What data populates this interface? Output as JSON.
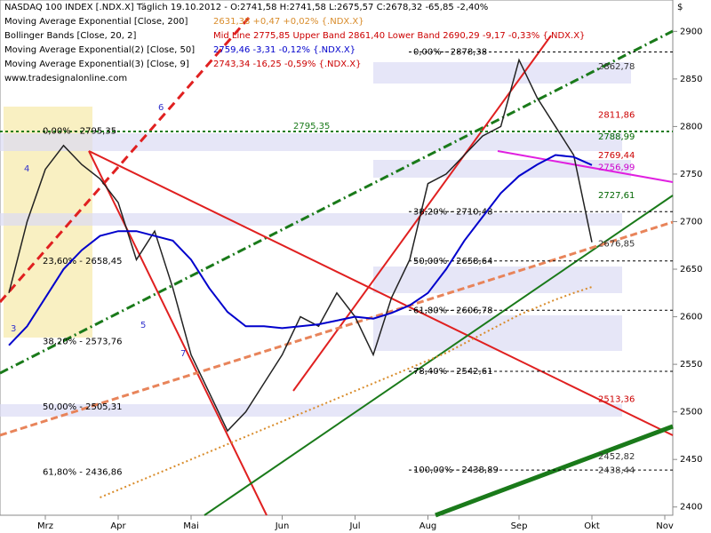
{
  "chart_data": {
    "type": "line",
    "title": "NASDAQ 100 INDEX [.NDX.X]  Täglich 19.10.2012 - O:2741,58 H:2741,58 L:2675,57 C:2678,32 -65,85 -2,40%",
    "y_unit": "$",
    "watermark": "www.tradesignalonline.com",
    "legend": [
      {
        "name": "Moving Average Exponential [Close, 200]",
        "value": "2631,38 +0,47 +0,02% {.NDX.X}",
        "color": "#d98c2b"
      },
      {
        "name": "Bollinger Bands [Close, 20, 2]",
        "value": "Mid Line 2775,85 Upper Band 2861,40 Lower Band 2690,29 -9,17 -0,33% {.NDX.X}",
        "color": "#cc0000"
      },
      {
        "name": "Moving Average Exponential(2) [Close, 50]",
        "value": "2759,46 -3,31 -0,12% {.NDX.X}",
        "color": "#0000cc"
      },
      {
        "name": "Moving Average Exponential(3) [Close, 9]",
        "value": "2743,34 -16,25 -0,59% {.NDX.X}",
        "color": "#cc0000"
      }
    ],
    "categories": [
      null,
      null,
      "Mrz",
      null,
      null,
      null,
      "Apr",
      null,
      null,
      null,
      "Mai",
      null,
      null,
      null,
      null,
      "Jun",
      null,
      null,
      null,
      "Jul",
      null,
      null,
      null,
      "Aug",
      null,
      null,
      null,
      null,
      "Sep",
      null,
      null,
      null,
      "Okt",
      null,
      null,
      null,
      "Nov"
    ],
    "series": [
      {
        "color": "#222222",
        "values": [
          2625,
          2700,
          2755,
          2780,
          2760,
          2745,
          2720,
          2660,
          2690,
          2630,
          2560,
          2520,
          2480,
          2500,
          2530,
          2560,
          2600,
          2590,
          2625,
          2600,
          2560,
          2620,
          2660,
          2740,
          2750,
          2770,
          2790,
          2800,
          2870,
          2830,
          2800,
          2770,
          2678.32,
          null,
          null,
          null,
          null
        ]
      },
      {
        "name": "Moving Average Exponential(2) [Close, 50]",
        "color": "#0000cc",
        "values": [
          2570,
          2590,
          2620,
          2650,
          2670,
          2685,
          2690,
          2690,
          2685,
          2680,
          2660,
          2630,
          2605,
          2590,
          2590,
          2588,
          2590,
          2592,
          2596,
          2600,
          2598,
          2604,
          2612,
          2625,
          2650,
          2680,
          2705,
          2730,
          2748,
          2760,
          2770,
          2768,
          2759.46,
          null,
          null,
          null,
          null
        ]
      },
      {
        "name": "Moving Average Exponential [Close, 200]",
        "color": "#d98c2b",
        "values": [
          null,
          null,
          null,
          null,
          null,
          2410,
          2418,
          2426,
          2434,
          2442,
          2450,
          2458,
          2466,
          2474,
          2482,
          2490,
          2498,
          2506,
          2514,
          2522,
          2530,
          2538,
          2546,
          2554,
          2562,
          2572,
          2582,
          2592,
          2602,
          2610,
          2618,
          2625,
          2631.38,
          null,
          null,
          null,
          null
        ]
      }
    ],
    "ylim": [
      2382,
      2933
    ],
    "yticks": [
      2400,
      2450,
      2500,
      2550,
      2600,
      2650,
      2700,
      2750,
      2800,
      2850,
      2900
    ],
    "left_levels": [
      {
        "value": 2795.35,
        "label": "0,00% - 2795,35"
      },
      {
        "value": 2658.45,
        "label": "23,60% - 2658,45"
      },
      {
        "value": 2573.76,
        "label": "38,20% - 2573,76"
      },
      {
        "value": 2505.31,
        "label": "50,00% - 2505,31"
      },
      {
        "value": 2436.86,
        "label": "61,80% - 2436,86"
      }
    ],
    "mid_levels": [
      {
        "value": 2878.38,
        "label": "0,00% - 2878,38"
      },
      {
        "value": 2710.48,
        "label": "38,20% - 2710,48"
      },
      {
        "value": 2658.64,
        "label": "50,00% - 2658,64"
      },
      {
        "value": 2606.78,
        "label": "61,80% - 2606,78"
      },
      {
        "value": 2542.61,
        "label": "78,40% - 2542,61"
      },
      {
        "value": 2438.89,
        "label": "100,00% - 2438,89"
      }
    ],
    "right_levels": [
      {
        "value": 2862.78,
        "label": "2862,78",
        "color": "#333333"
      },
      {
        "value": 2811.86,
        "label": "2811,86",
        "color": "#cc0000"
      },
      {
        "value": 2788.99,
        "label": "2788,99",
        "color": "#006600"
      },
      {
        "value": 2769.44,
        "label": "2769,44",
        "color": "#cc0000"
      },
      {
        "value": 2756.99,
        "label": "2756,99",
        "color": "#cc00cc"
      },
      {
        "value": 2727.61,
        "label": "2727,61",
        "color": "#006600"
      },
      {
        "value": 2676.85,
        "label": "2676,85",
        "color": "#333333"
      },
      {
        "value": 2513.36,
        "label": "2513,36",
        "color": "#cc0000"
      },
      {
        "value": 2452.82,
        "label": "2452,82",
        "color": "#333333"
      },
      {
        "value": 2438.44,
        "label": "2438,44",
        "color": "#333333"
      }
    ],
    "center_level": {
      "value": 2795.35,
      "label": "2795,35"
    },
    "wave_labels": [
      "3",
      "4",
      "5",
      "6",
      "7"
    ]
  }
}
